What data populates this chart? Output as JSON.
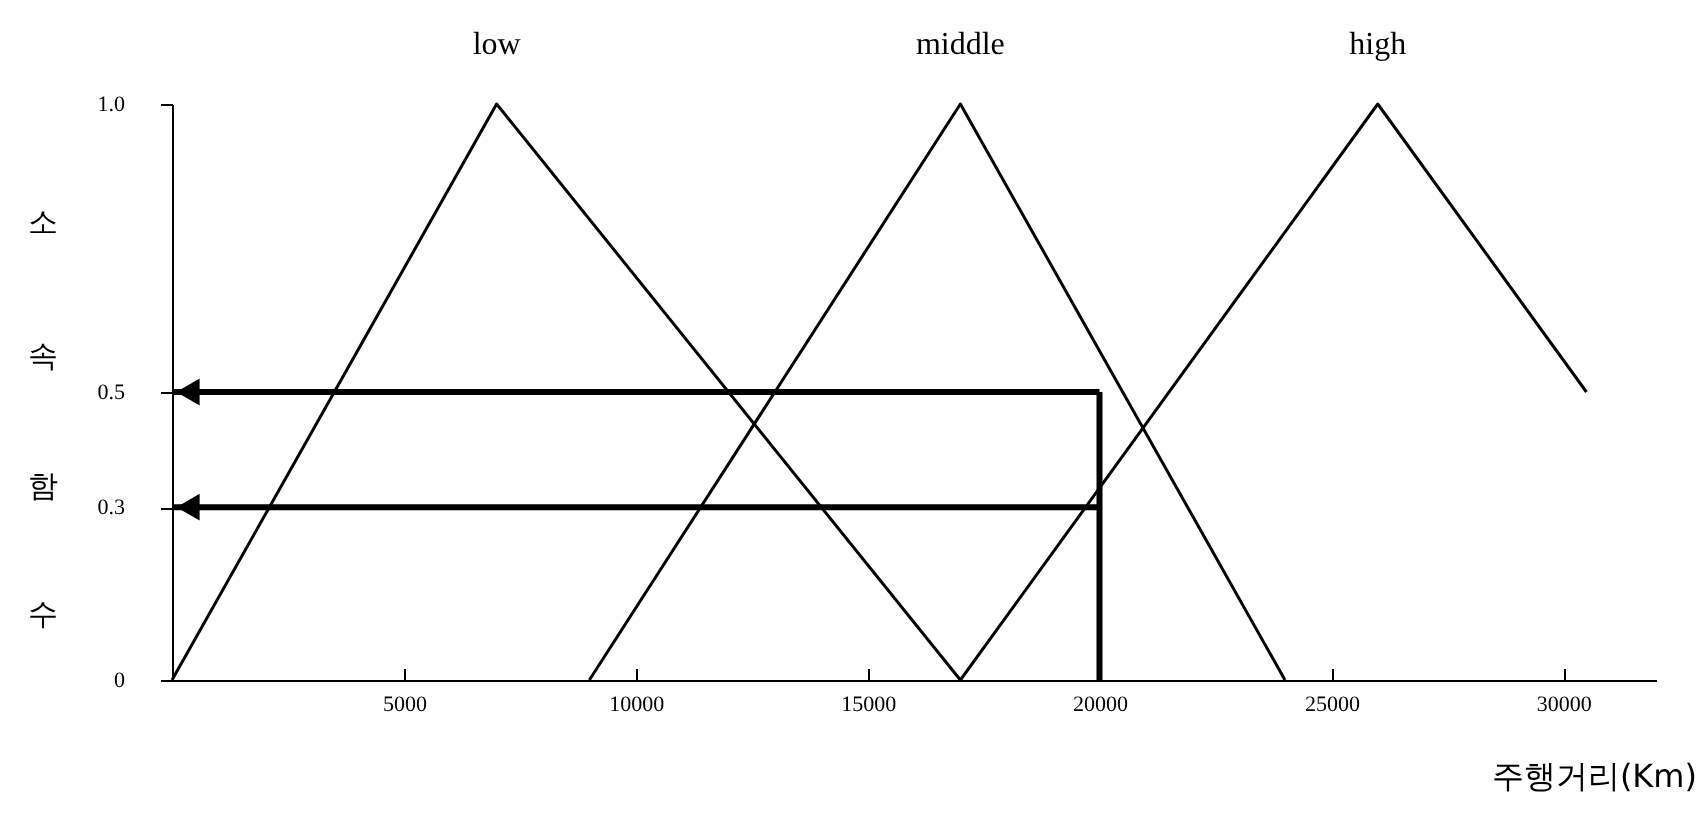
{
  "chart_data": {
    "type": "line",
    "xlabel": "주행거리(Km)",
    "ylabel": "소속함수",
    "xlim": [
      0,
      32000
    ],
    "xticks": [
      5000,
      10000,
      15000,
      20000,
      25000,
      30000
    ],
    "ylim": [
      0,
      1
    ],
    "yticks": [
      0,
      0.3,
      0.5,
      {
        "value": 1,
        "label": "1.0"
      }
    ],
    "grid": false,
    "marker": "none",
    "series": [
      {
        "name": "low",
        "color": "#000000",
        "x": [
          0,
          7000,
          17000
        ],
        "values": [
          0,
          1,
          0
        ]
      },
      {
        "name": "middle",
        "color": "#000000",
        "x": [
          9000,
          17000,
          24000
        ],
        "values": [
          0,
          1,
          0
        ]
      },
      {
        "name": "high",
        "color": "#000000",
        "x": [
          17000,
          26000,
          30500
        ],
        "values": [
          0,
          1,
          0.5
        ]
      }
    ],
    "ref_lines": [
      {
        "axis": "x",
        "value": 20000,
        "label": null
      },
      {
        "axis": "y",
        "value": 0.5,
        "label": null
      },
      {
        "axis": "y",
        "value": 0.3,
        "label": null
      }
    ]
  }
}
